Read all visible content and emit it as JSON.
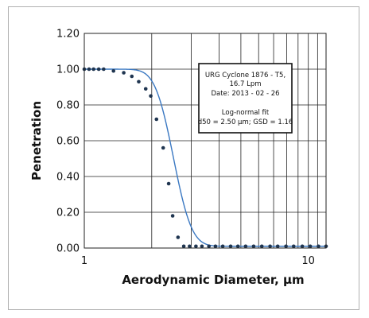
{
  "chart_data": {
    "type": "scatter",
    "xscale": "log",
    "xlim": [
      1,
      12
    ],
    "ylim": [
      0,
      1.2
    ],
    "xlabel": "Aerodynamic Diameter, µm",
    "ylabel": "Penetration",
    "grid": true,
    "xticks": [
      {
        "value": 1,
        "label": "1"
      },
      {
        "value": 10,
        "label": "10"
      }
    ],
    "yticks": [
      {
        "value": 0.0,
        "label": "0.00"
      },
      {
        "value": 0.2,
        "label": "0.20"
      },
      {
        "value": 0.4,
        "label": "0.40"
      },
      {
        "value": 0.6,
        "label": "0.60"
      },
      {
        "value": 0.8,
        "label": "0.80"
      },
      {
        "value": 1.0,
        "label": "1.00"
      },
      {
        "value": 1.2,
        "label": "1.20"
      }
    ],
    "fit": {
      "type": "log-normal",
      "d50": 2.5,
      "gsd": 1.16
    },
    "series": [
      {
        "x": [
          1.0,
          1.05,
          1.1,
          1.16,
          1.22,
          1.35,
          1.5,
          1.63,
          1.75,
          1.88,
          1.98,
          2.1,
          2.25,
          2.38,
          2.48,
          2.62,
          2.78,
          2.95,
          3.15,
          3.35,
          3.6,
          3.85,
          4.15,
          4.5,
          4.85,
          5.25,
          5.7,
          6.2,
          6.75,
          7.3,
          7.95,
          8.6,
          9.4,
          10.2,
          11.1,
          12.0
        ],
        "y": [
          1.0,
          1.0,
          1.0,
          1.0,
          1.0,
          0.99,
          0.98,
          0.96,
          0.93,
          0.89,
          0.85,
          0.72,
          0.56,
          0.36,
          0.18,
          0.06,
          0.01,
          0.01,
          0.01,
          0.01,
          0.01,
          0.01,
          0.01,
          0.01,
          0.01,
          0.01,
          0.01,
          0.01,
          0.01,
          0.01,
          0.01,
          0.01,
          0.01,
          0.01,
          0.01,
          0.01
        ]
      }
    ],
    "annotation": [
      "URG Cyclone 1876 - T5,",
      "16.7 Lpm",
      "Date: 2013 - 02 - 26",
      "",
      "Log-normal fit",
      "d50 = 2.50 µm; GSD = 1.16"
    ],
    "colors": {
      "points": "#1f3550",
      "curve": "#3a78c2",
      "grid": "#222222"
    }
  }
}
